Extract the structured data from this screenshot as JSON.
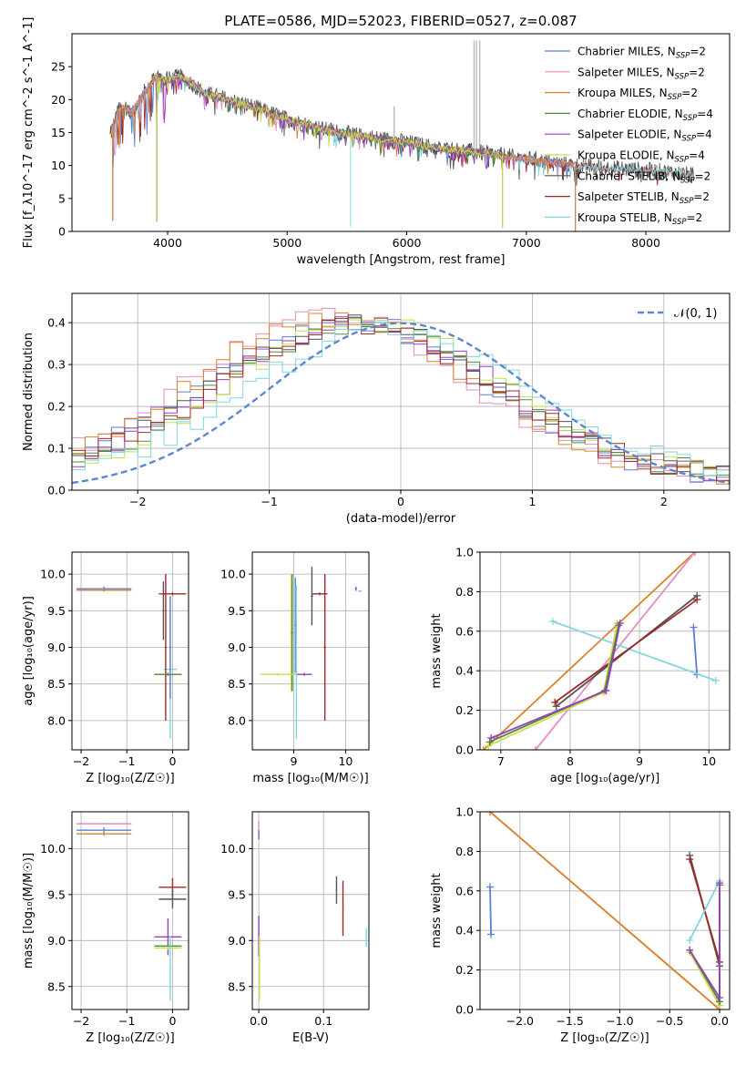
{
  "colors": {
    "Chabrier MILES": "#5b7fd6",
    "Salpeter MILES": "#e58cc0",
    "Kroupa MILES": "#d9832a",
    "Chabrier ELODIE": "#4f8a3a",
    "Salpeter ELODIE": "#9b3dbd",
    "Kroupa ELODIE": "#c9de4c",
    "Chabrier STELIB": "#555555",
    "Salpeter STELIB": "#a02828",
    "Kroupa STELIB": "#7ed7df",
    "reference": "#5b87cf"
  },
  "chart_data": [
    {
      "id": "spectrum",
      "type": "line",
      "title": "PLATE=0586, MJD=52023, FIBERID=0527, z=0.087",
      "xlabel": "wavelength [Angstrom, rest frame]",
      "ylabel": "Flux [f_λ10^-17 erg cm^-2 s^-1 A^-1]",
      "xlim": [
        3200,
        8700
      ],
      "ylim": [
        0,
        30
      ],
      "xticks": [
        4000,
        5000,
        6000,
        7000,
        8000
      ],
      "yticks": [
        0,
        5,
        10,
        15,
        20,
        25
      ],
      "grid": false,
      "legend_position": "top-right",
      "legend": [
        {
          "model": "Chabrier MILES",
          "label": "Chabrier MILES, N",
          "sub": "SSP",
          "suffix": "=2"
        },
        {
          "model": "Salpeter MILES",
          "label": "Salpeter MILES, N",
          "sub": "SSP",
          "suffix": "=2"
        },
        {
          "model": "Kroupa MILES",
          "label": "Kroupa MILES, N",
          "sub": "SSP",
          "suffix": "=2"
        },
        {
          "model": "Chabrier ELODIE",
          "label": "Chabrier ELODIE, N",
          "sub": "SSP",
          "suffix": "=4"
        },
        {
          "model": "Salpeter ELODIE",
          "label": "Salpeter ELODIE, N",
          "sub": "SSP",
          "suffix": "=4"
        },
        {
          "model": "Kroupa ELODIE",
          "label": "Kroupa ELODIE, N",
          "sub": "SSP",
          "suffix": "=4"
        },
        {
          "model": "Chabrier STELIB",
          "label": "Chabrier STELIB, N",
          "sub": "SSP",
          "suffix": "=2"
        },
        {
          "model": "Salpeter STELIB",
          "label": "Salpeter STELIB, N",
          "sub": "SSP",
          "suffix": "=2"
        },
        {
          "model": "Kroupa STELIB",
          "label": "Kroupa STELIB, N",
          "sub": "SSP",
          "suffix": "=2"
        }
      ],
      "continuum": {
        "x": [
          3520,
          3600,
          3700,
          3800,
          3900,
          4000,
          4100,
          4200,
          4300,
          4500,
          4700,
          5000,
          5300,
          5600,
          6000,
          6300,
          6600,
          7000,
          7400,
          7800,
          8200,
          8400
        ],
        "y": [
          14.5,
          19,
          18,
          21,
          23.5,
          23,
          23.5,
          22.5,
          21,
          20,
          19,
          17,
          15.5,
          14.5,
          13.5,
          12.5,
          12,
          11,
          10,
          9.5,
          9,
          8.5
        ]
      },
      "series_x_range": [
        {
          "model": "Chabrier MILES",
          "x": [
            3540,
            7410
          ]
        },
        {
          "model": "Salpeter MILES",
          "x": [
            3540,
            7410
          ]
        },
        {
          "model": "Kroupa MILES",
          "x": [
            3540,
            7410
          ]
        },
        {
          "model": "Chabrier ELODIE",
          "x": [
            3900,
            6800
          ]
        },
        {
          "model": "Salpeter ELODIE",
          "x": [
            3900,
            6800
          ]
        },
        {
          "model": "Kroupa ELODIE",
          "x": [
            3900,
            6800
          ]
        },
        {
          "model": "Chabrier STELIB",
          "x": [
            3520,
            8400
          ]
        },
        {
          "model": "Salpeter STELIB",
          "x": [
            3520,
            8400
          ]
        },
        {
          "model": "Kroupa STELIB",
          "x": [
            3520,
            8400
          ]
        }
      ],
      "features": [
        {
          "x": 3540,
          "depth": 14
        },
        {
          "x": 3910,
          "depth": 22
        },
        {
          "x": 5530,
          "depth": 14
        },
        {
          "x": 6800,
          "depth": 11
        },
        {
          "x": 7410,
          "depth": 10
        }
      ],
      "emission_lines": [
        {
          "x": 6563,
          "height": 29
        },
        {
          "x": 6583,
          "height": 29
        },
        {
          "x": 6610,
          "height": 29
        },
        {
          "x": 5895,
          "height": 19
        }
      ]
    },
    {
      "id": "residuals",
      "type": "line",
      "xlabel": "(data-model)/error",
      "ylabel": "Normed distribution",
      "xlim": [
        -2.5,
        2.5
      ],
      "ylim": [
        0,
        0.47
      ],
      "xticks": [
        -2,
        -1,
        0,
        1,
        2
      ],
      "yticks": [
        0.0,
        0.1,
        0.2,
        0.3,
        0.4
      ],
      "grid": true,
      "legend_position": "top-right",
      "reference": {
        "label": "𝒩(0, 1)",
        "mean": 0,
        "sigma": 1
      },
      "bins": {
        "start": -2.5,
        "width": 0.1
      },
      "series": [
        {
          "model": "Chabrier MILES",
          "offset": -0.45,
          "peak": 0.38
        },
        {
          "model": "Salpeter MILES",
          "offset": -0.55,
          "peak": 0.39
        },
        {
          "model": "Kroupa MILES",
          "offset": -0.5,
          "peak": 0.385
        },
        {
          "model": "Chabrier ELODIE",
          "offset": -0.3,
          "peak": 0.36
        },
        {
          "model": "Salpeter ELODIE",
          "offset": -0.3,
          "peak": 0.365
        },
        {
          "model": "Kroupa ELODIE",
          "offset": -0.25,
          "peak": 0.37
        },
        {
          "model": "Chabrier STELIB",
          "offset": -0.35,
          "peak": 0.37
        },
        {
          "model": "Salpeter STELIB",
          "offset": -0.35,
          "peak": 0.36
        },
        {
          "model": "Kroupa STELIB",
          "offset": -0.1,
          "peak": 0.35
        }
      ]
    },
    {
      "id": "age-vs-z",
      "type": "scatter",
      "xlabel": "Z [log₁₀(Z/Z☉)]",
      "ylabel": "age  [log₁₀(age/yr)]",
      "xlim": [
        -2.2,
        0.35
      ],
      "ylim": [
        7.6,
        10.3
      ],
      "xticks": [
        -2,
        -1,
        0
      ],
      "yticks": [
        8.0,
        8.5,
        9.0,
        9.5,
        10.0
      ],
      "grid": true,
      "errorbars": [
        {
          "model": "Chabrier MILES",
          "x": -1.5,
          "xerr": 0.6,
          "y": 9.8,
          "yerr": 0.03
        },
        {
          "model": "Kroupa MILES",
          "x": -1.5,
          "xerr": 0.6,
          "y": 9.78,
          "yerr": 0.02
        },
        {
          "model": "Kroupa STELIB",
          "x": -0.05,
          "xerr": 0.15,
          "y": 8.7,
          "yerr": 0.95
        },
        {
          "model": "Salpeter STELIB",
          "x": -0.15,
          "xerr": 0.02,
          "y": 9.0,
          "yerr": 1.0
        },
        {
          "model": "Chabrier STELIB",
          "x": -0.2,
          "xerr": 0.02,
          "y": 9.5,
          "yerr": 0.4
        },
        {
          "model": "Salpeter STELIB",
          "x": 0.0,
          "xerr": 0.3,
          "y": 9.73,
          "yerr": 0.02
        },
        {
          "model": "Kroupa ELODIE",
          "x": -0.1,
          "xerr": 0.3,
          "y": 8.63,
          "yerr": 0.02
        },
        {
          "model": "Chabrier ELODIE",
          "x": -0.1,
          "xerr": 0.3,
          "y": 8.63,
          "yerr": 0.02
        },
        {
          "model": "Chabrier MILES",
          "x": -0.05,
          "xerr": 0.02,
          "y": 9.0,
          "yerr": 0.7
        }
      ]
    },
    {
      "id": "age-vs-mass",
      "type": "scatter",
      "xlabel": "mass [log₁₀(M/M☉)]",
      "ylabel": "",
      "xlim": [
        8.2,
        10.45
      ],
      "ylim": [
        7.6,
        10.3
      ],
      "xticks": [
        9,
        10
      ],
      "yticks": [
        8.0,
        8.5,
        9.0,
        9.5,
        10.0
      ],
      "grid": true,
      "errorbars": [
        {
          "model": "Kroupa ELODIE",
          "x": 8.95,
          "xerr": 0.02,
          "y": 9.2,
          "yerr": 0.8
        },
        {
          "model": "Chabrier ELODIE",
          "x": 8.97,
          "xerr": 0.02,
          "y": 9.2,
          "yerr": 0.8
        },
        {
          "model": "Kroupa ELODIE",
          "x": 8.7,
          "xerr": 0.35,
          "y": 8.63,
          "yerr": 0.02
        },
        {
          "model": "Salpeter ELODIE",
          "x": 9.2,
          "xerr": 0.15,
          "y": 8.63,
          "yerr": 0.02
        },
        {
          "model": "Chabrier MILES",
          "x": 9.03,
          "xerr": 0.02,
          "y": 9.3,
          "yerr": 0.65
        },
        {
          "model": "Kroupa STELIB",
          "x": 9.05,
          "xerr": 0.02,
          "y": 8.8,
          "yerr": 1.05
        },
        {
          "model": "Chabrier STELIB",
          "x": 9.35,
          "xerr": 0.02,
          "y": 9.7,
          "yerr": 0.4
        },
        {
          "model": "Salpeter STELIB",
          "x": 9.6,
          "xerr": 0.02,
          "y": 9.0,
          "yerr": 1.0
        },
        {
          "model": "Salpeter STELIB",
          "x": 9.5,
          "xerr": 0.15,
          "y": 9.73,
          "yerr": 0.02
        },
        {
          "model": "Chabrier MILES",
          "x": 10.2,
          "xerr": 0.02,
          "y": 9.8,
          "yerr": 0.03
        },
        {
          "model": "Salpeter MILES",
          "x": 10.28,
          "xerr": 0.03,
          "y": 9.77,
          "yerr": 0.01
        }
      ]
    },
    {
      "id": "weight-vs-age",
      "type": "line",
      "xlabel": "age  [log₁₀(age/yr)]",
      "ylabel": "mass weight",
      "xlim": [
        6.7,
        10.3
      ],
      "ylim": [
        0,
        1
      ],
      "xticks": [
        7,
        8,
        9,
        10
      ],
      "yticks": [
        0.0,
        0.2,
        0.4,
        0.6,
        0.8,
        1.0
      ],
      "grid": true,
      "series": [
        {
          "model": "Kroupa MILES",
          "x": [
            6.75,
            9.8
          ],
          "y": [
            0.0,
            1.0
          ]
        },
        {
          "model": "Salpeter MILES",
          "x": [
            7.5,
            9.8
          ],
          "y": [
            0.0,
            1.0
          ]
        },
        {
          "model": "Chabrier MILES",
          "x": [
            9.78,
            9.83
          ],
          "y": [
            0.62,
            0.38
          ]
        },
        {
          "model": "Kroupa STELIB",
          "x": [
            7.75,
            10.1
          ],
          "y": [
            0.65,
            0.35
          ]
        },
        {
          "model": "Chabrier STELIB",
          "x": [
            7.8,
            9.83
          ],
          "y": [
            0.22,
            0.78
          ]
        },
        {
          "model": "Salpeter STELIB",
          "x": [
            7.78,
            9.83
          ],
          "y": [
            0.24,
            0.76
          ]
        },
        {
          "model": "Kroupa ELODIE",
          "x": [
            6.82,
            8.48,
            8.68
          ],
          "y": [
            0.02,
            0.29,
            0.64
          ]
        },
        {
          "model": "Chabrier ELODIE",
          "x": [
            6.84,
            8.5,
            8.7
          ],
          "y": [
            0.04,
            0.3,
            0.63
          ]
        },
        {
          "model": "Salpeter ELODIE",
          "x": [
            6.86,
            8.52,
            8.72
          ],
          "y": [
            0.06,
            0.3,
            0.64
          ]
        }
      ]
    },
    {
      "id": "mass-vs-z",
      "type": "scatter",
      "xlabel": "Z [log₁₀(Z/Z☉)]",
      "ylabel": "mass [log₁₀(M/M☉)]",
      "xlim": [
        -2.2,
        0.35
      ],
      "ylim": [
        8.25,
        10.4
      ],
      "xticks": [
        -2,
        -1,
        0
      ],
      "yticks": [
        8.5,
        9.0,
        9.5,
        10.0
      ],
      "grid": true,
      "errorbars": [
        {
          "model": "Salpeter MILES",
          "x": -1.5,
          "xerr": 0.6,
          "y": 10.27,
          "yerr": 0.01
        },
        {
          "model": "Chabrier MILES",
          "x": -1.5,
          "xerr": 0.6,
          "y": 10.2,
          "yerr": 0.03
        },
        {
          "model": "Kroupa MILES",
          "x": -1.5,
          "xerr": 0.6,
          "y": 10.16,
          "yerr": 0.02
        },
        {
          "model": "Salpeter STELIB",
          "x": 0.0,
          "xerr": 0.3,
          "y": 9.58,
          "yerr": 0.1
        },
        {
          "model": "Chabrier STELIB",
          "x": 0.0,
          "xerr": 0.3,
          "y": 9.45,
          "yerr": 0.1
        },
        {
          "model": "Salpeter ELODIE",
          "x": -0.1,
          "xerr": 0.3,
          "y": 9.04,
          "yerr": 0.2
        },
        {
          "model": "Chabrier ELODIE",
          "x": -0.1,
          "xerr": 0.3,
          "y": 8.94,
          "yerr": 0.02
        },
        {
          "model": "Kroupa ELODIE",
          "x": -0.1,
          "xerr": 0.3,
          "y": 8.92,
          "yerr": 0.02
        },
        {
          "model": "Kroupa STELIB",
          "x": -0.05,
          "xerr": 0.02,
          "y": 8.7,
          "yerr": 0.35
        }
      ]
    },
    {
      "id": "mass-vs-ebv",
      "type": "scatter",
      "xlabel": "E(B-V)",
      "ylabel": "",
      "xlim": [
        -0.01,
        0.17
      ],
      "ylim": [
        8.25,
        10.4
      ],
      "xticks": [
        0.0,
        0.1
      ],
      "yticks": [
        8.5,
        9.0,
        9.5,
        10.0
      ],
      "grid": true,
      "errorbars": [
        {
          "model": "Salpeter MILES",
          "x": 0.0,
          "xerr": 0.001,
          "y": 10.2,
          "yerr": 0.1
        },
        {
          "model": "Chabrier MILES",
          "x": 0.0,
          "xerr": 0.001,
          "y": 10.15,
          "yerr": 0.05
        },
        {
          "model": "Salpeter ELODIE",
          "x": 0.0,
          "xerr": 0.001,
          "y": 9.05,
          "yerr": 0.22
        },
        {
          "model": "Kroupa ELODIE",
          "x": 0.001,
          "xerr": 0.001,
          "y": 8.7,
          "yerr": 0.35
        },
        {
          "model": "Chabrier STELIB",
          "x": 0.12,
          "xerr": 0.001,
          "y": 9.55,
          "yerr": 0.15
        },
        {
          "model": "Salpeter STELIB",
          "x": 0.13,
          "xerr": 0.001,
          "y": 9.35,
          "yerr": 0.3
        },
        {
          "model": "Kroupa STELIB",
          "x": 0.166,
          "xerr": 0.001,
          "y": 9.03,
          "yerr": 0.1
        }
      ]
    },
    {
      "id": "weight-vs-z",
      "type": "line",
      "xlabel": "Z [log₁₀(Z/Z☉)]",
      "ylabel": "mass weight",
      "xlim": [
        -2.4,
        0.1
      ],
      "ylim": [
        0,
        1
      ],
      "xticks": [
        -2.0,
        -1.5,
        -1.0,
        -0.5,
        0.0
      ],
      "yticks": [
        0.0,
        0.2,
        0.4,
        0.6,
        0.8,
        1.0
      ],
      "grid": true,
      "series": [
        {
          "model": "Salpeter MILES",
          "x": [
            -2.3,
            0.0
          ],
          "y": [
            1.0,
            0.0
          ]
        },
        {
          "model": "Kroupa MILES",
          "x": [
            -2.3,
            0.0
          ],
          "y": [
            1.0,
            0.0
          ]
        },
        {
          "model": "Chabrier MILES",
          "x": [
            -2.3,
            -2.29
          ],
          "y": [
            0.62,
            0.38
          ]
        },
        {
          "model": "Chabrier STELIB",
          "x": [
            -0.3,
            0.0
          ],
          "y": [
            0.78,
            0.22
          ]
        },
        {
          "model": "Salpeter STELIB",
          "x": [
            -0.3,
            0.0
          ],
          "y": [
            0.76,
            0.24
          ]
        },
        {
          "model": "Kroupa STELIB",
          "x": [
            -0.3,
            0.0
          ],
          "y": [
            0.35,
            0.65
          ]
        },
        {
          "model": "Kroupa ELODIE",
          "x": [
            -0.3,
            0.0,
            0.0
          ],
          "y": [
            0.29,
            0.02,
            0.64
          ]
        },
        {
          "model": "Chabrier ELODIE",
          "x": [
            -0.3,
            0.0,
            0.0
          ],
          "y": [
            0.3,
            0.04,
            0.63
          ]
        },
        {
          "model": "Salpeter ELODIE",
          "x": [
            -0.3,
            0.0,
            0.0
          ],
          "y": [
            0.3,
            0.06,
            0.64
          ]
        }
      ]
    }
  ]
}
